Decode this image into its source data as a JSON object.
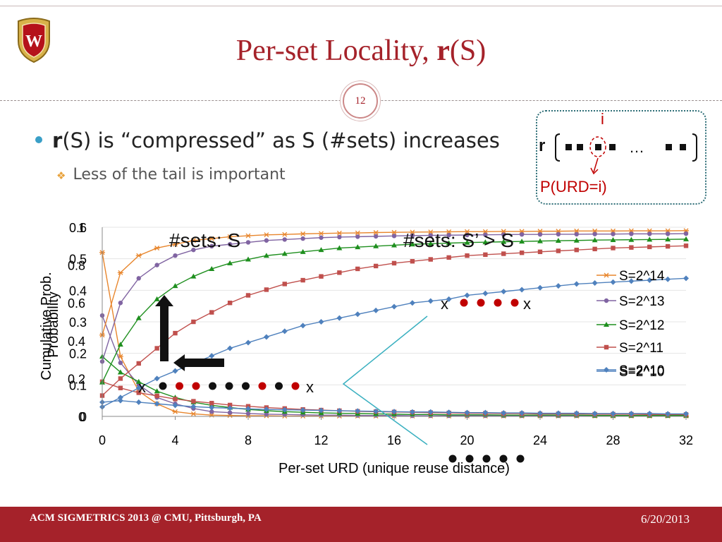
{
  "slide": {
    "title_pre": "Per-set Locality, ",
    "title_bold": "r",
    "title_post": "(S)",
    "page_number": "12",
    "bullet_bold": "r",
    "bullet_text": "(S) is “compressed” as S (#sets) increases",
    "sub_bullet": "Less of the tail is important",
    "footer_left": "ACM SIGMETRICS 2013 @ CMU, Pittsburgh, PA",
    "footer_right": "6/20/2013"
  },
  "r_diagram": {
    "r_label": "r",
    "index_label": "i",
    "ellipsis": "…",
    "prob_label": "P(URD=i)"
  },
  "annotations": {
    "sets_s": "#sets: S",
    "sets_s_prime": "#sets: S’ > S",
    "x_marker": "x"
  },
  "colors": {
    "title": "#a5222a",
    "footer": "#a5222a",
    "bullet": "#3a9fc7",
    "S=2^14": "#e8862d",
    "S=2^13": "#8064a2",
    "S=2^12": "#1e8f1e",
    "S=2^11": "#c0504d",
    "S=2^10": "#4f81bd"
  },
  "chart_data": [
    {
      "type": "line",
      "ylabel": "Probability",
      "xlabel": "Per-set URD (unique reuse distance)",
      "x_ticks": [
        "0",
        "4",
        "8",
        "12",
        "16",
        "20",
        "24",
        "28",
        "32"
      ],
      "y_ticks": [
        "0",
        "0.1",
        "0.2",
        "0.3",
        "0.4",
        "0.5",
        "0.6"
      ],
      "xlim": [
        0,
        32
      ],
      "ylim": [
        0,
        0.6
      ],
      "x": [
        0,
        1,
        2,
        3,
        4,
        5,
        6,
        7,
        8,
        9,
        10,
        11,
        12,
        13,
        14,
        15,
        16,
        17,
        18,
        19,
        20,
        21,
        22,
        23,
        24,
        25,
        26,
        27,
        28,
        29,
        30,
        31,
        32
      ],
      "series": [
        {
          "name": "S=2^14",
          "marker": "star",
          "values": [
            0.52,
            0.19,
            0.08,
            0.04,
            0.015,
            0.008,
            0.004,
            0.003,
            0.002,
            0.002,
            0.001,
            0.001,
            0.001,
            0.001,
            0.001,
            0.001,
            0.001,
            0.001,
            0.001,
            0.001,
            0.001,
            0.001,
            0.001,
            0.001,
            0.001,
            0.001,
            0.001,
            0.001,
            0.001,
            0.001,
            0.001,
            0.001,
            0.001
          ]
        },
        {
          "name": "S=2^13",
          "marker": "circle",
          "values": [
            0.32,
            0.17,
            0.1,
            0.06,
            0.04,
            0.025,
            0.015,
            0.012,
            0.009,
            0.007,
            0.006,
            0.005,
            0.004,
            0.004,
            0.003,
            0.003,
            0.003,
            0.002,
            0.002,
            0.002,
            0.002,
            0.002,
            0.002,
            0.002,
            0.002,
            0.002,
            0.002,
            0.002,
            0.002,
            0.002,
            0.002,
            0.002,
            0.002
          ]
        },
        {
          "name": "S=2^12",
          "marker": "triangle",
          "values": [
            0.19,
            0.14,
            0.11,
            0.08,
            0.06,
            0.045,
            0.035,
            0.028,
            0.022,
            0.018,
            0.015,
            0.013,
            0.011,
            0.01,
            0.009,
            0.008,
            0.007,
            0.006,
            0.006,
            0.005,
            0.005,
            0.005,
            0.004,
            0.004,
            0.004,
            0.004,
            0.004,
            0.003,
            0.003,
            0.003,
            0.003,
            0.003,
            0.003
          ]
        },
        {
          "name": "S=2^11",
          "marker": "square",
          "values": [
            0.11,
            0.09,
            0.075,
            0.065,
            0.055,
            0.048,
            0.042,
            0.036,
            0.032,
            0.028,
            0.025,
            0.022,
            0.02,
            0.018,
            0.016,
            0.015,
            0.014,
            0.013,
            0.012,
            0.011,
            0.01,
            0.01,
            0.009,
            0.009,
            0.008,
            0.008,
            0.008,
            0.007,
            0.007,
            0.007,
            0.006,
            0.006,
            0.006
          ]
        },
        {
          "name": "S=2^10",
          "marker": "diamond",
          "values": [
            0.045,
            0.05,
            0.045,
            0.04,
            0.035,
            0.031,
            0.028,
            0.026,
            0.024,
            0.022,
            0.021,
            0.02,
            0.019,
            0.018,
            0.017,
            0.016,
            0.015,
            0.014,
            0.014,
            0.013,
            0.012,
            0.012,
            0.011,
            0.011,
            0.01,
            0.01,
            0.01,
            0.009,
            0.009,
            0.009,
            0.009,
            0.008,
            0.008
          ]
        }
      ]
    },
    {
      "type": "line",
      "ylabel": "Cumulative Prob.",
      "y_ticks": [
        "0",
        "0.2",
        "0.4",
        "0.6",
        "0.8",
        "1"
      ],
      "xlim": [
        0,
        32
      ],
      "ylim": [
        0,
        1
      ],
      "x": [
        0,
        1,
        2,
        3,
        4,
        5,
        6,
        7,
        8,
        9,
        10,
        11,
        12,
        13,
        14,
        15,
        16,
        17,
        18,
        19,
        20,
        21,
        22,
        23,
        24,
        25,
        26,
        27,
        28,
        29,
        30,
        31,
        32
      ],
      "series": [
        {
          "name": "S=2^14",
          "marker": "star",
          "values": [
            0.43,
            0.76,
            0.85,
            0.89,
            0.91,
            0.93,
            0.94,
            0.95,
            0.955,
            0.96,
            0.962,
            0.965,
            0.967,
            0.969,
            0.97,
            0.972,
            0.973,
            0.974,
            0.975,
            0.976,
            0.977,
            0.977,
            0.978,
            0.978,
            0.979,
            0.979,
            0.98,
            0.98,
            0.98,
            0.981,
            0.981,
            0.981,
            0.982
          ]
        },
        {
          "name": "S=2^13",
          "marker": "circle",
          "values": [
            0.29,
            0.6,
            0.73,
            0.8,
            0.85,
            0.88,
            0.9,
            0.91,
            0.92,
            0.93,
            0.935,
            0.94,
            0.945,
            0.948,
            0.95,
            0.952,
            0.954,
            0.956,
            0.957,
            0.958,
            0.959,
            0.96,
            0.961,
            0.962,
            0.962,
            0.963,
            0.963,
            0.964,
            0.964,
            0.965,
            0.965,
            0.965,
            0.966
          ]
        },
        {
          "name": "S=2^12",
          "marker": "triangle",
          "values": [
            0.18,
            0.38,
            0.52,
            0.62,
            0.69,
            0.74,
            0.78,
            0.81,
            0.83,
            0.85,
            0.86,
            0.87,
            0.88,
            0.89,
            0.895,
            0.9,
            0.905,
            0.91,
            0.913,
            0.916,
            0.919,
            0.921,
            0.923,
            0.925,
            0.927,
            0.929,
            0.93,
            0.932,
            0.933,
            0.934,
            0.935,
            0.936,
            0.937
          ]
        },
        {
          "name": "S=2^11",
          "marker": "square",
          "values": [
            0.11,
            0.2,
            0.28,
            0.36,
            0.44,
            0.5,
            0.55,
            0.6,
            0.64,
            0.67,
            0.7,
            0.72,
            0.74,
            0.76,
            0.78,
            0.795,
            0.81,
            0.82,
            0.83,
            0.84,
            0.85,
            0.855,
            0.86,
            0.865,
            0.87,
            0.875,
            0.88,
            0.885,
            0.89,
            0.893,
            0.896,
            0.899,
            0.902
          ]
        },
        {
          "name": "S=2^10",
          "marker": "diamond",
          "values": [
            0.05,
            0.1,
            0.15,
            0.2,
            0.24,
            0.28,
            0.32,
            0.36,
            0.39,
            0.42,
            0.45,
            0.48,
            0.5,
            0.52,
            0.54,
            0.56,
            0.58,
            0.6,
            0.61,
            0.62,
            0.64,
            0.65,
            0.66,
            0.67,
            0.68,
            0.69,
            0.7,
            0.705,
            0.71,
            0.715,
            0.72,
            0.725,
            0.73
          ]
        }
      ]
    }
  ]
}
